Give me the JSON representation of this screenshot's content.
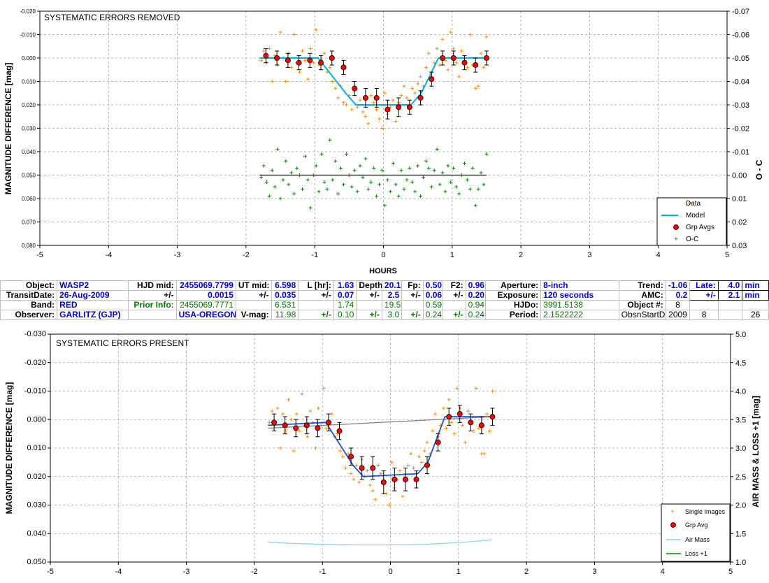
{
  "top_chart": {
    "title": "SYSTEMATIC ERRORS REMOVED",
    "ylabel": "MAGNITUDE DIFFERENCE [mag]",
    "y2label": "O - C",
    "xlabel": "HOURS",
    "xticks": [
      "-5",
      "-4",
      "-3",
      "-2",
      "-1",
      "0",
      "1",
      "2",
      "3",
      "4",
      "5"
    ],
    "yticks": [
      "-0.020",
      "-0.010",
      "0.000",
      "0.010",
      "0.020",
      "0.030",
      "0.040",
      "0.050",
      "0.060",
      "0.070",
      "0.080"
    ],
    "y2ticks": [
      "-0.07",
      "-0.06",
      "-0.05",
      "-0.04",
      "-0.03",
      "-0.02",
      "-0.01",
      "0.00",
      "0.01",
      "0.02",
      "0.03"
    ],
    "legend": [
      "Data",
      "Model",
      "Grp Avgs",
      "O-C"
    ]
  },
  "bottom_chart": {
    "title": "SYSTEMATIC ERRORS PRESENT",
    "ylabel": "MAGNITUDE DIFFERENCE [mag]",
    "y2label": "AIR MASS & LOSS +1 [mag]",
    "xticks": [
      "-5",
      "-4",
      "-3",
      "-2",
      "-1",
      "0",
      "1",
      "2",
      "3",
      "4",
      "5"
    ],
    "yticks": [
      "-0.030",
      "-0.020",
      "-0.010",
      "0.000",
      "0.010",
      "0.020",
      "0.030",
      "0.040",
      "0.050"
    ],
    "y2ticks": [
      "5.0",
      "4.5",
      "4.0",
      "3.5",
      "3.0",
      "2.5",
      "2.0",
      "1.5",
      "1.0"
    ],
    "legend": [
      "Single Images",
      "Grp Avg",
      "Air Mass",
      "Loss +1"
    ]
  },
  "info": {
    "r1": {
      "k1": "Object:",
      "v1": "WASP2",
      "k2": "HJD mid:",
      "v2": "2455069.7799",
      "k3": "UT mid:",
      "v3": "6.598",
      "k4": "L [hr]:",
      "v4": "1.63",
      "k5": "Depth:",
      "v5": "20.1",
      "k6": "Fp:",
      "v6": "0.50",
      "k7": "F2:",
      "v7": "0.96",
      "k8": "Aperture:",
      "v8": "8-inch",
      "k9": "Trend:",
      "v9": "-1.06",
      "k10": "Late:",
      "v10": "4.0",
      "u10": "min"
    },
    "r2": {
      "k1": "TransitDate:",
      "v1": "26-Aug-2009",
      "k2": "+/-",
      "v2": "0.0015",
      "k3": "+/-",
      "v3": "0.035",
      "k4": "+/-",
      "v4": "0.07",
      "k5": "+/-",
      "v5": "2.5",
      "k6": "+/-",
      "v6": "0.06",
      "k7": "+/-",
      "v7": "0.20",
      "k8": "Exposure:",
      "v8": "120 seconds",
      "k9": "AMC:",
      "v9": "0.2",
      "k10": "+/-",
      "v10": "2.1",
      "u10": "min"
    },
    "r3": {
      "k1": "Band:",
      "v1": "RED",
      "k2": "Prior Info:",
      "v2": "2455069.7771",
      "v3": "6.531",
      "v4": "1.74",
      "v5": "19.5",
      "v6": "0.59",
      "v7": "0.94",
      "k8": "HJDo:",
      "v8": "3991.5138",
      "k9": "Object #:",
      "v9": "8"
    },
    "r4": {
      "k1": "Observer:",
      "v1": "GARLITZ (GJP)",
      "v2": "USA-OREGON",
      "k3": "V-mag:",
      "v3": "11.98",
      "k4": "+/-",
      "v4": "0.10",
      "k5": "+/-",
      "v5": "3.0",
      "k6": "+/-",
      "v6": "0.24",
      "k7": "+/-",
      "v7": "0.24",
      "k8": "Period:",
      "v8": "2.1522222",
      "k9": "ObsnStartDate:",
      "v9a": "2009",
      "v9b": "8",
      "v9c": "26"
    }
  },
  "colors": {
    "data": "#ff8c00",
    "model": "#00b0e0",
    "grp": "#ff0000",
    "oc": "#008000",
    "model2": "#1f4fd8",
    "airmass": "#87ceeb",
    "grid": "#a0a0a0"
  },
  "chart_data": [
    {
      "type": "scatter",
      "title": "SYSTEMATIC ERRORS REMOVED",
      "xlabel": "HOURS",
      "ylabel": "MAGNITUDE DIFFERENCE [mag]",
      "y2label": "O - C",
      "xlim": [
        -5,
        5
      ],
      "ylim": [
        0.08,
        -0.02
      ],
      "y2lim": [
        0.03,
        -0.07
      ],
      "grid": true,
      "legend_position": "bottom-right",
      "series": [
        {
          "name": "Data",
          "x": [
            -1.78,
            -1.74,
            -1.7,
            -1.66,
            -1.62,
            -1.58,
            -1.54,
            -1.5,
            -1.46,
            -1.42,
            -1.38,
            -1.34,
            -1.3,
            -1.26,
            -1.22,
            -1.18,
            -1.14,
            -1.1,
            -1.06,
            -1.02,
            -0.98,
            -0.94,
            -0.9,
            -0.86,
            -0.82,
            -0.78,
            -0.74,
            -0.7,
            -0.66,
            -0.62,
            -0.58,
            -0.54,
            -0.5,
            -0.46,
            -0.42,
            -0.38,
            -0.34,
            -0.3,
            -0.26,
            -0.22,
            -0.18,
            -0.14,
            -0.1,
            -0.06,
            -0.02,
            0.02,
            0.06,
            0.1,
            0.14,
            0.18,
            0.22,
            0.26,
            0.3,
            0.34,
            0.38,
            0.42,
            0.46,
            0.5,
            0.54,
            0.58,
            0.62,
            0.66,
            0.7,
            0.74,
            0.78,
            0.82,
            0.86,
            0.9,
            0.94,
            0.98,
            1.02,
            1.06,
            1.1,
            1.14,
            1.18,
            1.22,
            1.26,
            1.3,
            1.34,
            1.38,
            1.42,
            1.46,
            1.5
          ],
          "y": [
            0.001,
            -0.003,
            0.002,
            -0.004,
            0.01,
            -0.001,
            0.003,
            -0.011,
            0.0,
            0.01,
            -0.002,
            0.004,
            -0.01,
            0.002,
            0.006,
            -0.003,
            0.001,
            0.009,
            -0.004,
            0.002,
            -0.012,
            0.003,
            0.001,
            -0.002,
            0.006,
            0.004,
            0.01,
            0.013,
            0.017,
            0.012,
            0.019,
            0.02,
            0.016,
            0.022,
            0.014,
            0.021,
            0.018,
            0.023,
            0.025,
            0.028,
            0.016,
            0.019,
            0.022,
            0.026,
            0.03,
            0.015,
            0.024,
            0.021,
            0.018,
            0.027,
            0.019,
            0.016,
            0.012,
            0.017,
            0.02,
            0.013,
            0.015,
            0.011,
            0.008,
            0.012,
            0.004,
            -0.002,
            0.006,
            0.002,
            -0.004,
            0.003,
            -0.008,
            0.001,
            0.005,
            -0.011,
            -0.004,
            0.002,
            0.008,
            -0.003,
            0.001,
            0.004,
            -0.01,
            0.003,
            0.013,
            0.012,
            -0.002,
            0.004,
            -0.009
          ],
          "color": "#ff8c00"
        },
        {
          "name": "Model",
          "x": [
            -1.8,
            -0.95,
            -0.55,
            -0.4,
            0.4,
            0.55,
            0.8,
            1.5
          ],
          "y": [
            0.0,
            0.0,
            0.015,
            0.02,
            0.02,
            0.015,
            0.0,
            0.0
          ],
          "color": "#00b0e0"
        },
        {
          "name": "Grp Avgs",
          "x": [
            -1.71,
            -1.55,
            -1.39,
            -1.23,
            -1.07,
            -0.91,
            -0.75,
            -0.58,
            -0.42,
            -0.26,
            -0.1,
            0.06,
            0.22,
            0.38,
            0.54,
            0.7,
            0.86,
            1.02,
            1.18,
            1.34,
            1.5
          ],
          "y": [
            -0.001,
            0.0,
            0.001,
            0.002,
            0.001,
            0.002,
            0.0,
            0.004,
            0.013,
            0.017,
            0.017,
            0.022,
            0.021,
            0.021,
            0.017,
            0.009,
            0.0,
            0.0,
            0.002,
            0.003,
            0.0
          ],
          "err": [
            0.003,
            0.003,
            0.003,
            0.003,
            0.003,
            0.003,
            0.003,
            0.003,
            0.003,
            0.004,
            0.004,
            0.004,
            0.004,
            0.003,
            0.003,
            0.003,
            0.003,
            0.003,
            0.003,
            0.003,
            0.003
          ],
          "color": "#ff0000"
        },
        {
          "name": "O-C",
          "axis": "y2",
          "x": [
            -1.78,
            -1.74,
            -1.7,
            -1.66,
            -1.62,
            -1.58,
            -1.54,
            -1.5,
            -1.46,
            -1.42,
            -1.38,
            -1.34,
            -1.3,
            -1.26,
            -1.22,
            -1.18,
            -1.14,
            -1.1,
            -1.06,
            -1.02,
            -0.98,
            -0.94,
            -0.9,
            -0.86,
            -0.82,
            -0.78,
            -0.74,
            -0.7,
            -0.66,
            -0.62,
            -0.58,
            -0.54,
            -0.5,
            -0.46,
            -0.42,
            -0.38,
            -0.34,
            -0.3,
            -0.26,
            -0.22,
            -0.18,
            -0.14,
            -0.1,
            -0.06,
            -0.02,
            0.02,
            0.06,
            0.1,
            0.14,
            0.18,
            0.22,
            0.26,
            0.3,
            0.34,
            0.38,
            0.42,
            0.46,
            0.5,
            0.54,
            0.58,
            0.62,
            0.66,
            0.7,
            0.74,
            0.78,
            0.82,
            0.86,
            0.9,
            0.94,
            0.98,
            1.02,
            1.06,
            1.1,
            1.14,
            1.18,
            1.22,
            1.26,
            1.3,
            1.34,
            1.38,
            1.42,
            1.46,
            1.5
          ],
          "y": [
            0.001,
            -0.004,
            0.003,
            0.009,
            -0.002,
            0.005,
            -0.011,
            0.01,
            0.002,
            -0.006,
            0.004,
            -0.001,
            0.008,
            -0.003,
            0.0,
            0.006,
            -0.008,
            0.002,
            0.014,
            0.0,
            -0.004,
            0.007,
            -0.009,
            0.003,
            0.006,
            -0.015,
            0.002,
            -0.006,
            0.008,
            -0.003,
            0.004,
            -0.009,
            0.0,
            0.005,
            -0.002,
            0.007,
            -0.004,
            0.001,
            -0.007,
            0.006,
            0.003,
            -0.003,
            0.009,
            0.004,
            -0.002,
            0.013,
            0.002,
            0.007,
            -0.005,
            0.004,
            0.009,
            -0.002,
            0.006,
            0.002,
            -0.003,
            0.003,
            0.007,
            -0.004,
            0.009,
            0.001,
            -0.006,
            -0.003,
            0.005,
            -0.002,
            -0.011,
            0.004,
            -0.001,
            0.007,
            -0.004,
            0.003,
            -0.003,
            0.005,
            0.008,
            0.0,
            -0.005,
            0.002,
            0.006,
            -0.003,
            0.013,
            0.006,
            -0.001,
            0.004,
            -0.009
          ],
          "color": "#008000"
        },
        {
          "name": "",
          "axis": "y2",
          "x": [
            -1.8,
            1.5
          ],
          "y": [
            0.0,
            0.0
          ],
          "color": "#000000"
        }
      ]
    },
    {
      "type": "scatter",
      "title": "SYSTEMATIC ERRORS PRESENT",
      "xlabel": "",
      "ylabel": "MAGNITUDE DIFFERENCE [mag]",
      "y2label": "AIR MASS & LOSS +1 [mag]",
      "xlim": [
        -5,
        5
      ],
      "ylim": [
        0.05,
        -0.03
      ],
      "y2lim": [
        1.0,
        5.0
      ],
      "grid": true,
      "legend_position": "bottom-right",
      "series": [
        {
          "name": "Single Images",
          "x": [
            -1.78,
            -1.74,
            -1.7,
            -1.66,
            -1.62,
            -1.58,
            -1.54,
            -1.5,
            -1.46,
            -1.42,
            -1.38,
            -1.34,
            -1.3,
            -1.26,
            -1.22,
            -1.18,
            -1.14,
            -1.1,
            -1.06,
            -1.02,
            -0.98,
            -0.94,
            -0.9,
            -0.86,
            -0.82,
            -0.78,
            -0.74,
            -0.7,
            -0.66,
            -0.62,
            -0.58,
            -0.54,
            -0.5,
            -0.46,
            -0.42,
            -0.38,
            -0.34,
            -0.3,
            -0.26,
            -0.22,
            -0.18,
            -0.14,
            -0.1,
            -0.06,
            -0.02,
            0.02,
            0.06,
            0.1,
            0.14,
            0.18,
            0.22,
            0.26,
            0.3,
            0.34,
            0.38,
            0.42,
            0.46,
            0.5,
            0.54,
            0.58,
            0.62,
            0.66,
            0.7,
            0.74,
            0.78,
            0.82,
            0.86,
            0.9,
            0.94,
            0.98,
            1.02,
            1.06,
            1.1,
            1.14,
            1.18,
            1.22,
            1.26,
            1.3,
            1.34,
            1.38,
            1.42,
            1.46,
            1.5
          ],
          "y": [
            0.001,
            -0.003,
            0.002,
            -0.004,
            0.01,
            -0.002,
            0.004,
            -0.007,
            0.0,
            0.011,
            -0.002,
            0.004,
            -0.009,
            0.002,
            0.006,
            -0.003,
            0.001,
            0.01,
            -0.004,
            0.002,
            -0.011,
            0.003,
            0.001,
            -0.002,
            0.006,
            0.005,
            0.011,
            0.013,
            0.017,
            0.012,
            0.019,
            0.021,
            0.016,
            0.022,
            0.014,
            0.02,
            0.018,
            0.023,
            0.025,
            0.028,
            0.016,
            0.019,
            0.022,
            0.026,
            0.03,
            0.015,
            0.024,
            0.021,
            0.018,
            0.027,
            0.019,
            0.016,
            0.012,
            0.017,
            0.021,
            0.013,
            0.015,
            0.011,
            0.008,
            0.012,
            0.004,
            -0.002,
            0.006,
            0.002,
            -0.004,
            0.003,
            -0.007,
            0.001,
            0.005,
            -0.011,
            -0.004,
            0.002,
            0.008,
            -0.003,
            0.001,
            0.004,
            -0.011,
            0.003,
            0.012,
            0.012,
            -0.002,
            0.004,
            -0.01
          ],
          "color": "#ff8c00"
        },
        {
          "name": "Grp Avg",
          "x": [
            -1.71,
            -1.55,
            -1.39,
            -1.23,
            -1.07,
            -0.91,
            -0.75,
            -0.58,
            -0.42,
            -0.26,
            -0.1,
            0.06,
            0.22,
            0.38,
            0.54,
            0.7,
            0.86,
            1.02,
            1.18,
            1.34,
            1.5
          ],
          "y": [
            0.001,
            0.002,
            0.003,
            0.002,
            0.003,
            0.001,
            0.004,
            0.013,
            0.017,
            0.017,
            0.022,
            0.021,
            0.021,
            0.021,
            0.016,
            0.008,
            -0.001,
            -0.002,
            0.001,
            0.002,
            -0.001
          ],
          "err": [
            0.003,
            0.003,
            0.003,
            0.003,
            0.003,
            0.003,
            0.003,
            0.003,
            0.004,
            0.004,
            0.004,
            0.004,
            0.004,
            0.003,
            0.003,
            0.003,
            0.003,
            0.003,
            0.003,
            0.003,
            0.003
          ],
          "color": "#ff0000"
        },
        {
          "name": "",
          "x": [
            -1.8,
            -0.95,
            -0.55,
            -0.4,
            0.4,
            0.55,
            0.8,
            1.5
          ],
          "y": [
            0.002,
            0.001,
            0.016,
            0.02,
            0.019,
            0.015,
            -0.001,
            -0.001
          ],
          "color": "#1f4fd8"
        },
        {
          "name": "",
          "x": [
            -1.8,
            1.5
          ],
          "y": [
            0.003,
            -0.001
          ],
          "color": "#808080"
        },
        {
          "name": "Air Mass",
          "axis": "y2",
          "x": [
            -1.8,
            -1.5,
            -1.0,
            -0.5,
            0.0,
            0.5,
            1.0,
            1.5
          ],
          "y": [
            1.35,
            1.33,
            1.31,
            1.3,
            1.3,
            1.31,
            1.34,
            1.39
          ],
          "color": "#87ceeb"
        }
      ]
    }
  ]
}
